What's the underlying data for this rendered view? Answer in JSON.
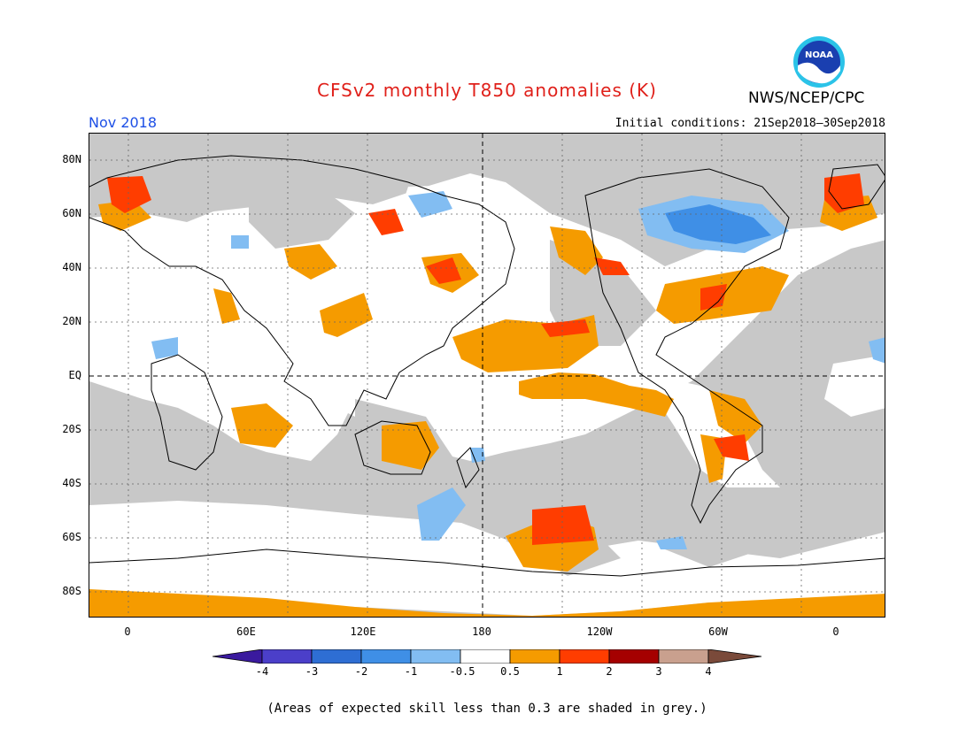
{
  "title": "CFSv2 monthly T850 anomalies (K)",
  "org": "NWS/NCEP/CPC",
  "logo_text": "NOAA",
  "valid_month": "Nov 2018",
  "initial_conditions": "Initial conditions: 21Sep2018–30Sep2018",
  "lat_labels": [
    "80N",
    "60N",
    "40N",
    "20N",
    "EQ",
    "20S",
    "40S",
    "60S",
    "80S"
  ],
  "lon_labels": [
    "0",
    "60E",
    "120E",
    "180",
    "120W",
    "60W",
    "0"
  ],
  "colorbar": {
    "levels": [
      "-4",
      "-3",
      "-2",
      "-1",
      "-0.5",
      "0.5",
      "1",
      "2",
      "3",
      "4"
    ],
    "colors": [
      "#3a1a9e",
      "#4b3fc9",
      "#2e6ed3",
      "#3f8fe6",
      "#82bdf2",
      "#ffffff",
      "#f59b00",
      "#ff3d00",
      "#a50000",
      "#c9a08e",
      "#7a4a3a"
    ]
  },
  "colors": {
    "title": "#e0201a",
    "month": "#1e50e6",
    "no_skill": "#c8c8c8",
    "neutral": "#ffffff"
  },
  "footnote": "(Areas of expected skill less than 0.3 are shaded in grey.)"
}
